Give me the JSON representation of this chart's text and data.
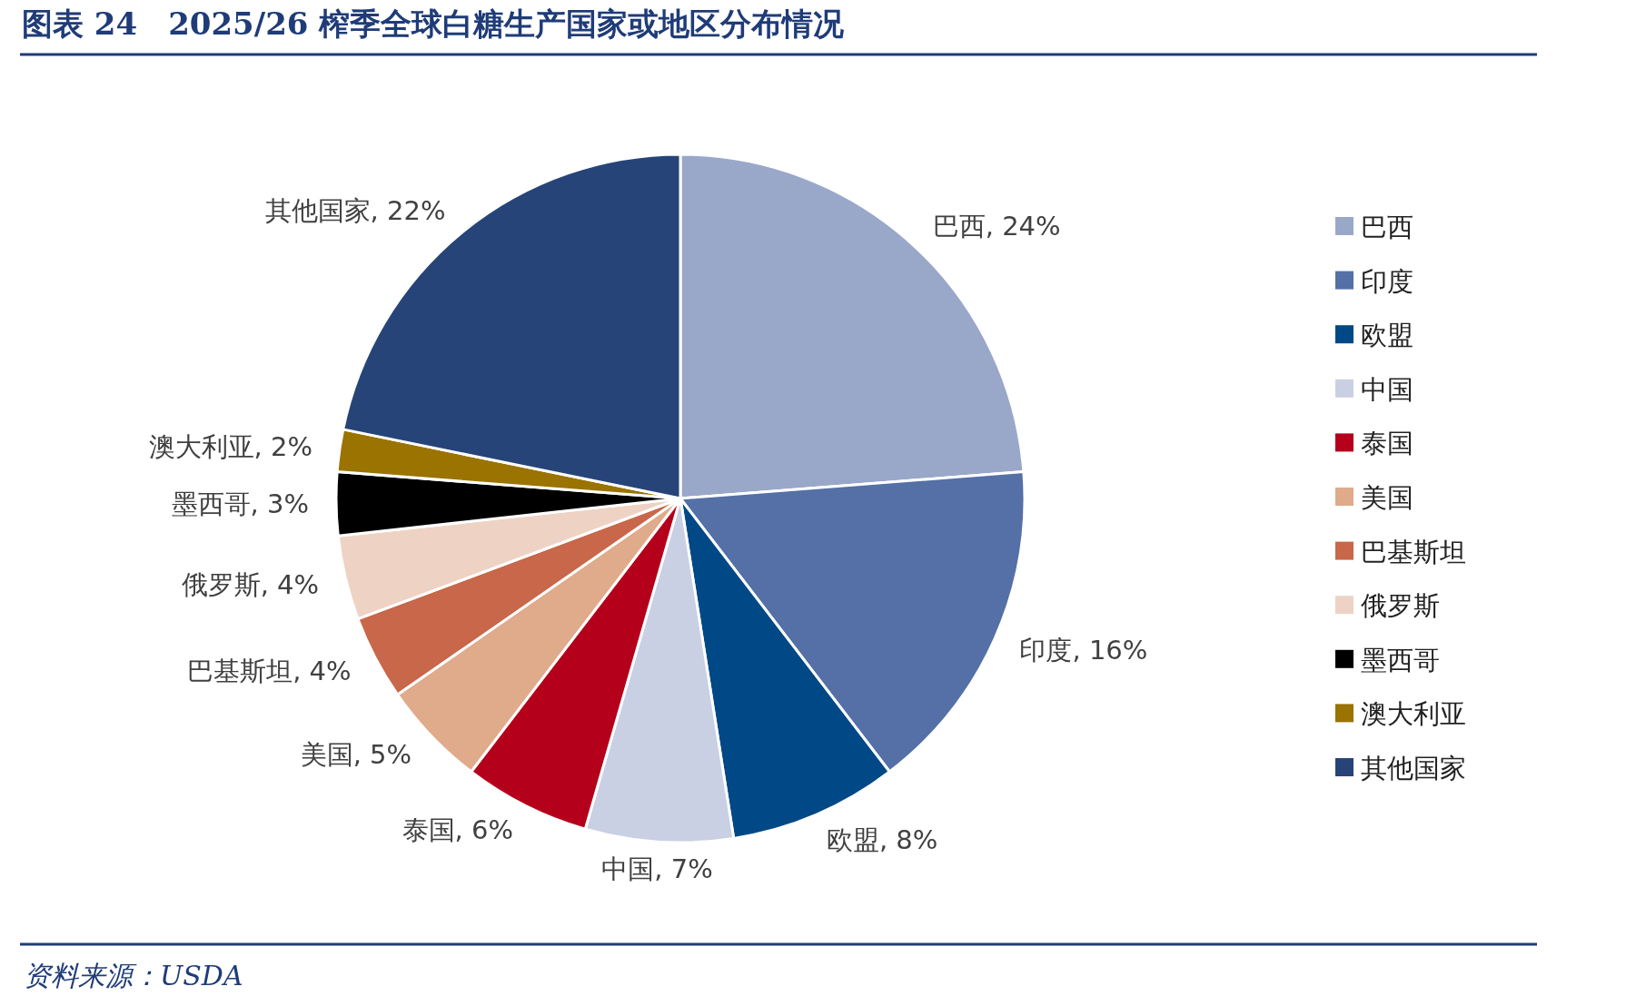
{
  "chart_data": {
    "type": "pie",
    "title": "图表 24　2025/26 榨季全球白糖生产国家或地区分布情况",
    "categories": [
      "巴西",
      "印度",
      "欧盟",
      "中国",
      "泰国",
      "美国",
      "巴基斯坦",
      "俄罗斯",
      "墨西哥",
      "澳大利亚",
      "其他国家"
    ],
    "values": [
      24,
      16,
      8,
      7,
      6,
      5,
      4,
      4,
      3,
      2,
      22
    ],
    "value_labels": [
      ", 24%",
      ", 16%",
      ", 8%",
      ", 7%",
      ", 6%",
      ", 5%",
      ", 4%",
      ", 4%",
      ", 3%",
      ", 2%",
      ", 22%"
    ],
    "colors": [
      "#99a7c9",
      "#5470a6",
      "#014886",
      "#c9d0e4",
      "#b5001b",
      "#dfab8b",
      "#c8674a",
      "#eed3c4",
      "#000000",
      "#9a7300",
      "#264478"
    ],
    "legend": "right",
    "annotations": [
      "资料来源：USDA"
    ]
  }
}
